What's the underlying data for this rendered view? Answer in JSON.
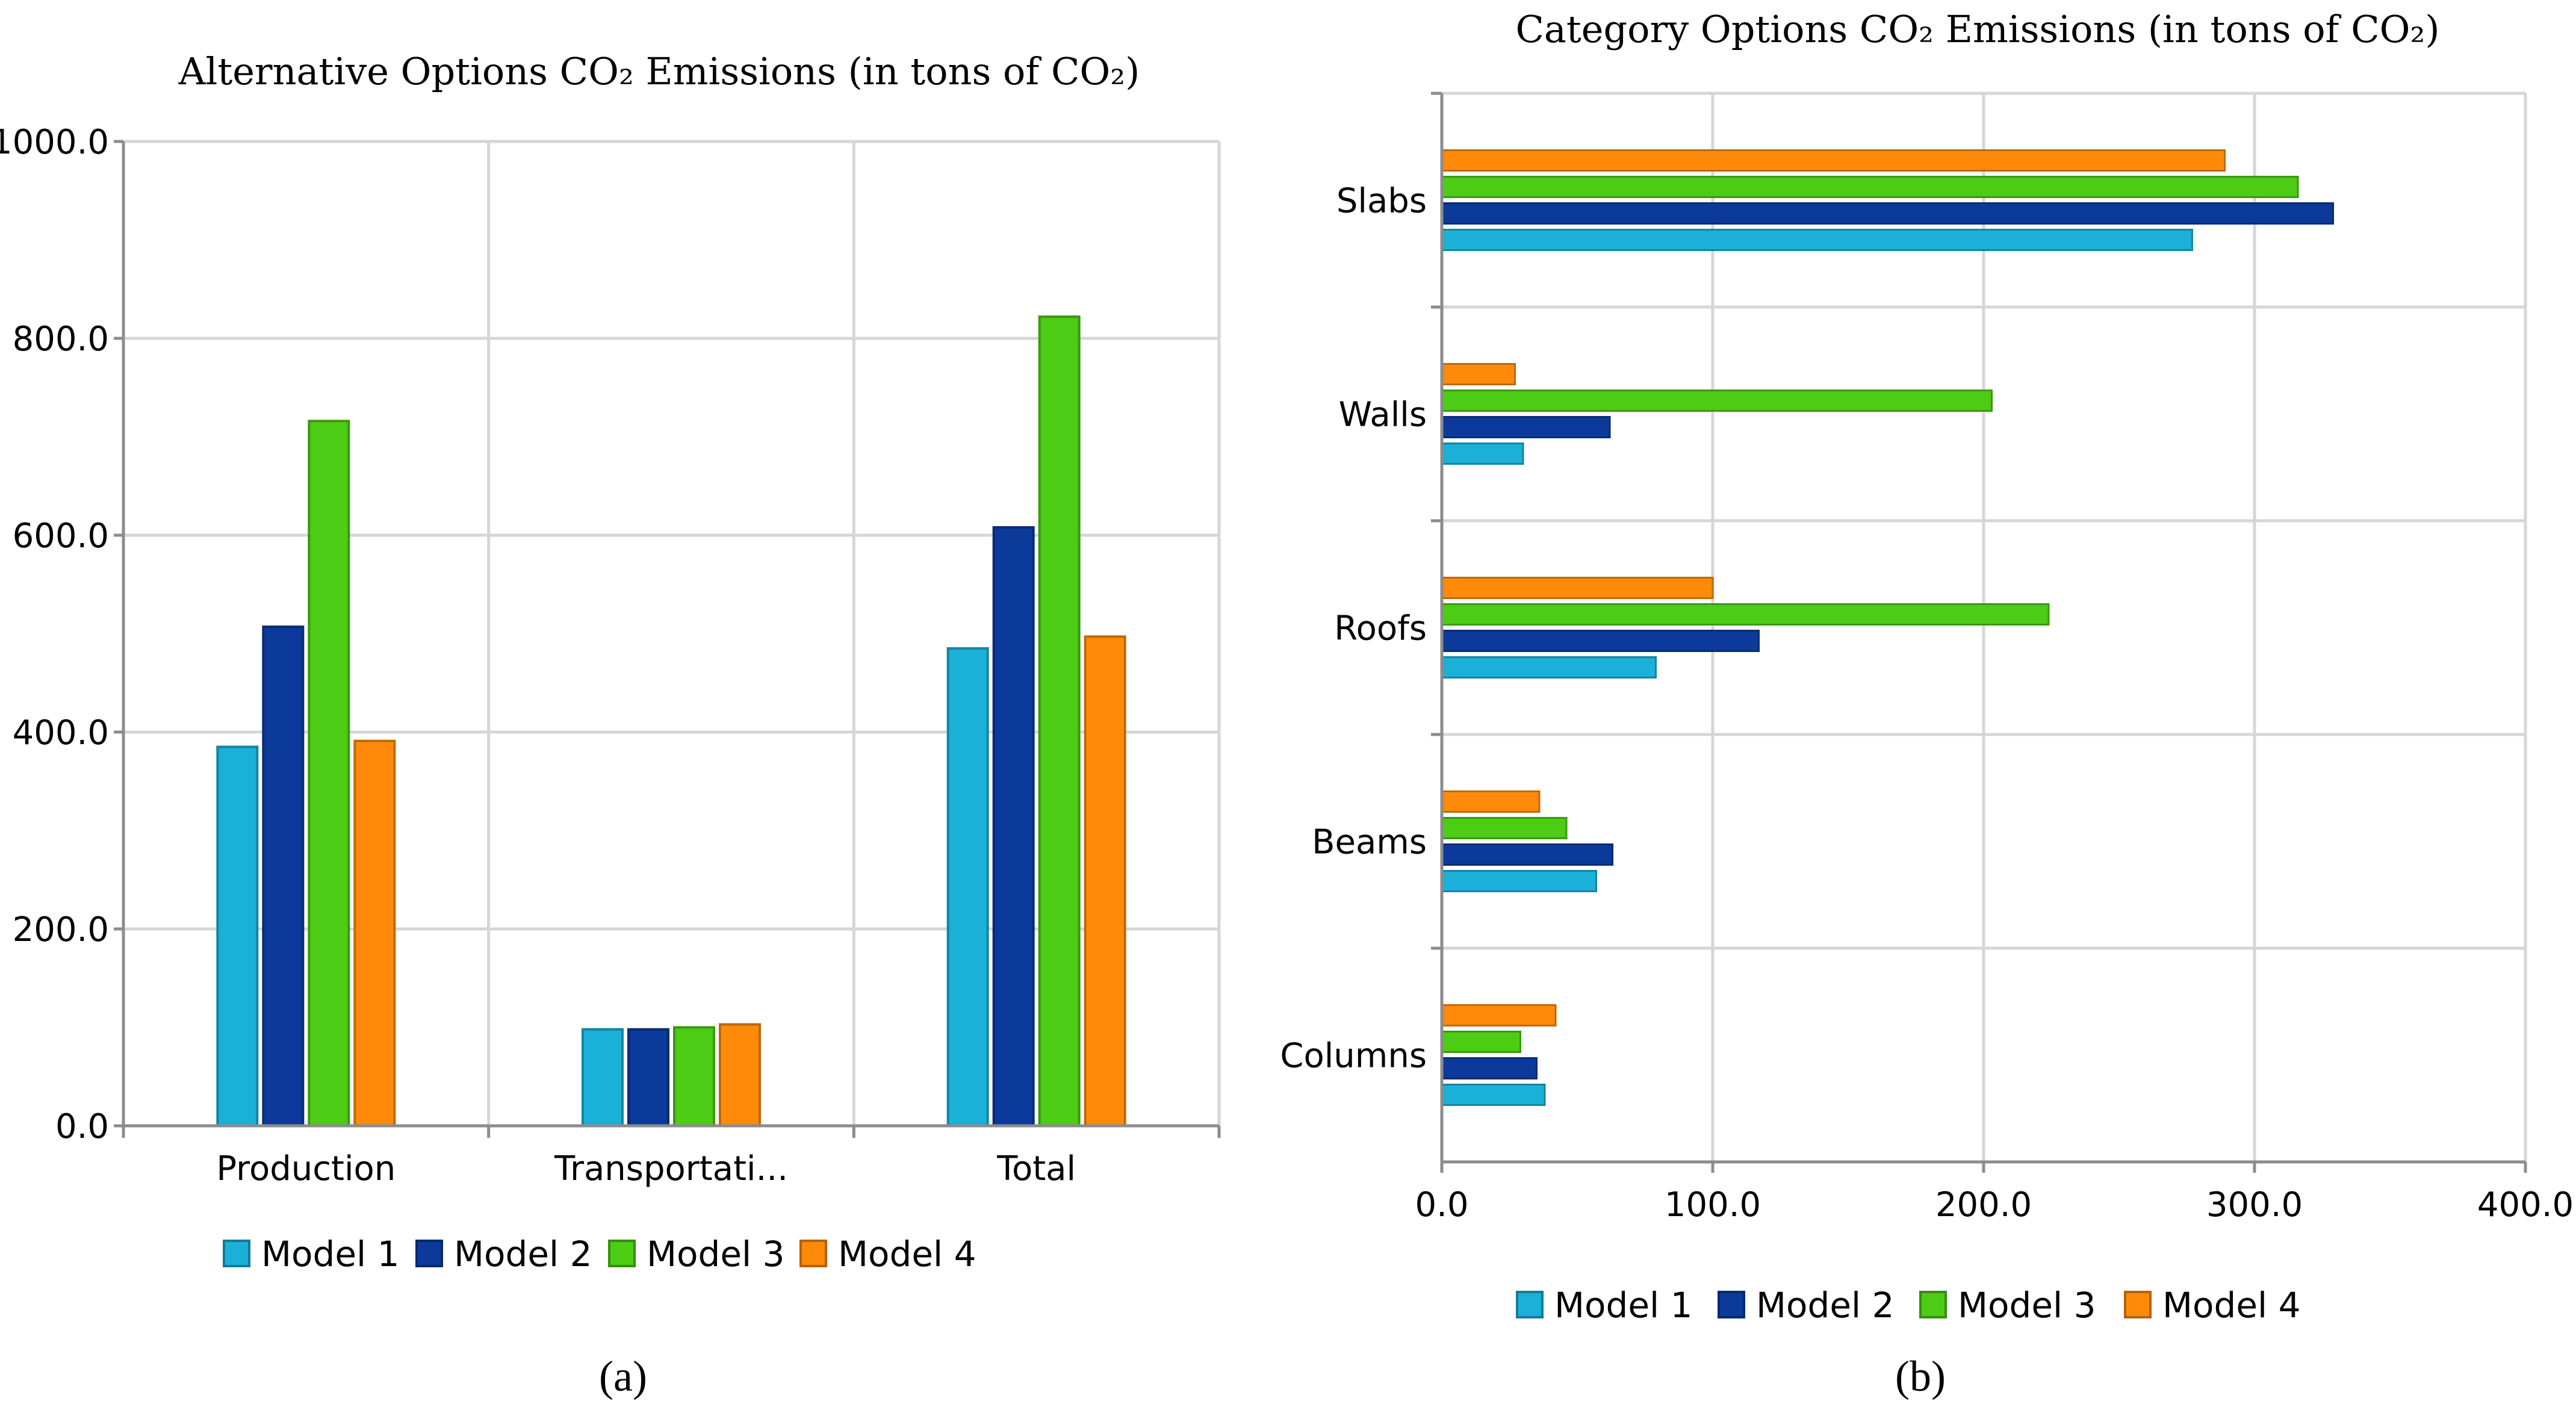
{
  "colors": {
    "model1": "#1ab0d8",
    "model2": "#0b3a9a",
    "model3": "#4ccc14",
    "model4": "#ff8a0a",
    "grid": "#d6d6d6",
    "axis": "#8c8c8c"
  },
  "captions": {
    "a": "(a)",
    "b": "(b)"
  },
  "chart_data": [
    {
      "id": "a",
      "type": "bar",
      "orientation": "vertical",
      "title": "Alternative Options CO₂ Emissions (in tons of CO₂)",
      "categories": [
        "Production",
        "Transportati...",
        "Total"
      ],
      "series": [
        {
          "name": "Model 1",
          "values": [
            385,
            98,
            485
          ]
        },
        {
          "name": "Model 2",
          "values": [
            507,
            98,
            608
          ]
        },
        {
          "name": "Model 3",
          "values": [
            716,
            100,
            822
          ]
        },
        {
          "name": "Model 4",
          "values": [
            391,
            103,
            497
          ]
        }
      ],
      "ylim": [
        0,
        1000
      ],
      "yticks": [
        0,
        200,
        400,
        600,
        800,
        1000
      ],
      "ytick_labels": [
        "0.0",
        "200.0",
        "400.0",
        "600.0",
        "800.0",
        "1000.0"
      ],
      "xlabel": "",
      "ylabel": "",
      "grid": true,
      "legend": [
        "Model 1",
        "Model 2",
        "Model 3",
        "Model 4"
      ],
      "legend_position": "bottom"
    },
    {
      "id": "b",
      "type": "bar",
      "orientation": "horizontal",
      "title": "Category Options CO₂ Emissions (in tons of CO₂)",
      "categories": [
        "Slabs",
        "Walls",
        "Roofs",
        "Beams",
        "Columns"
      ],
      "series": [
        {
          "name": "Model 1",
          "values": [
            277,
            30,
            79,
            57,
            38
          ]
        },
        {
          "name": "Model 2",
          "values": [
            329,
            62,
            117,
            63,
            35
          ]
        },
        {
          "name": "Model 3",
          "values": [
            316,
            203,
            224,
            46,
            29
          ]
        },
        {
          "name": "Model 4",
          "values": [
            289,
            27,
            100,
            36,
            42
          ]
        }
      ],
      "xlim": [
        0,
        400
      ],
      "xticks": [
        0,
        100,
        200,
        300,
        400
      ],
      "xtick_labels": [
        "0.0",
        "100.0",
        "200.0",
        "300.0",
        "400.0"
      ],
      "xlabel": "",
      "ylabel": "",
      "grid": true,
      "legend": [
        "Model 1",
        "Model 2",
        "Model 3",
        "Model 4"
      ],
      "legend_position": "bottom"
    }
  ]
}
